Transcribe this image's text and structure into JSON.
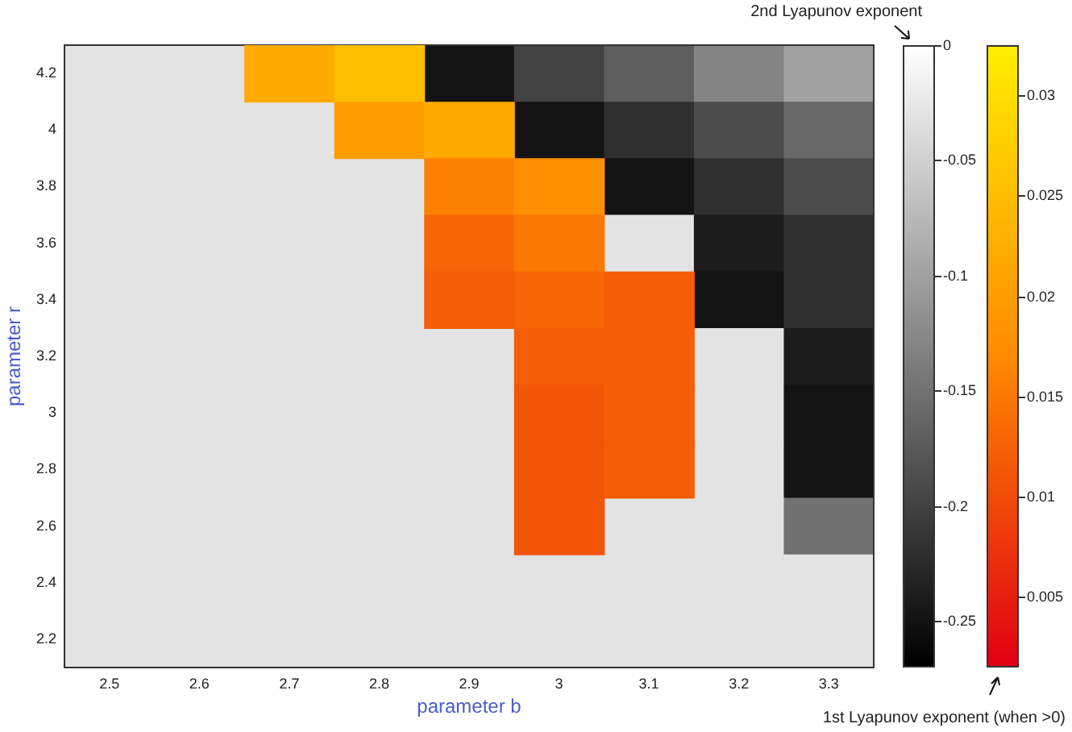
{
  "chart_data": [
    {
      "type": "heatmap",
      "xlabel": "parameter b",
      "ylabel": "parameter r",
      "clabel": "2nd Lyapunov exponent",
      "categories": [
        "2.5",
        "2.6",
        "2.7",
        "2.8",
        "2.9",
        "3",
        "3.1",
        "3.2",
        "3.3"
      ],
      "y_categories": [
        "4.2",
        "4",
        "3.8",
        "3.6",
        "3.4",
        "3.2",
        "3",
        "2.8",
        "2.6",
        "2.4",
        "2.2"
      ],
      "clim": [
        -0.27,
        0
      ],
      "cticks": [
        0,
        -0.05,
        -0.1,
        -0.15,
        -0.2,
        -0.25
      ],
      "legend": false,
      "grid": false,
      "cells": [
        [
          -0.03,
          -0.03,
          null,
          null,
          -0.25,
          -0.2,
          -0.17,
          -0.13,
          -0.1
        ],
        [
          -0.03,
          -0.03,
          -0.03,
          null,
          null,
          -0.25,
          -0.22,
          -0.19,
          -0.16
        ],
        [
          -0.03,
          -0.03,
          -0.03,
          -0.03,
          null,
          null,
          -0.25,
          -0.22,
          -0.19
        ],
        [
          -0.03,
          -0.03,
          -0.03,
          -0.03,
          null,
          null,
          -0.03,
          -0.24,
          -0.22
        ],
        [
          -0.03,
          -0.03,
          -0.03,
          -0.03,
          null,
          null,
          null,
          -0.25,
          -0.22
        ],
        [
          -0.03,
          -0.03,
          -0.03,
          -0.03,
          -0.03,
          null,
          null,
          -0.03,
          -0.24
        ],
        [
          -0.03,
          -0.03,
          -0.03,
          -0.03,
          -0.03,
          null,
          null,
          -0.03,
          -0.25
        ],
        [
          -0.03,
          -0.03,
          -0.03,
          -0.03,
          -0.03,
          null,
          null,
          -0.03,
          -0.25
        ],
        [
          -0.03,
          -0.03,
          -0.03,
          -0.03,
          -0.03,
          null,
          -0.03,
          -0.03,
          -0.15
        ],
        [
          -0.03,
          -0.03,
          -0.03,
          -0.03,
          -0.03,
          -0.03,
          -0.03,
          -0.03,
          -0.03
        ],
        [
          -0.03,
          -0.03,
          -0.03,
          -0.03,
          -0.03,
          -0.03,
          -0.03,
          -0.03,
          -0.03
        ]
      ]
    },
    {
      "type": "heatmap",
      "clabel": "1st Lyapunov exponent (when >0)",
      "tick_labels": false,
      "categories": [
        "2.5",
        "2.6",
        "2.7",
        "2.8",
        "2.9",
        "3",
        "3.1",
        "3.2",
        "3.3"
      ],
      "y_categories": [
        "4.2",
        "4",
        "3.8",
        "3.6",
        "3.4",
        "3.2",
        "3",
        "2.8",
        "2.6",
        "2.4",
        "2.2"
      ],
      "clim": [
        0.0015,
        0.0325
      ],
      "cticks": [
        0.005,
        0.01,
        0.015,
        0.02,
        0.025,
        0.03
      ],
      "legend": false,
      "grid": false,
      "cells": [
        [
          null,
          null,
          0.022,
          0.025,
          null,
          null,
          null,
          null,
          null
        ],
        [
          null,
          null,
          null,
          0.02,
          0.022,
          null,
          null,
          null,
          null
        ],
        [
          null,
          null,
          null,
          null,
          0.016,
          0.018,
          null,
          null,
          null
        ],
        [
          null,
          null,
          null,
          null,
          0.013,
          0.015,
          null,
          null,
          null
        ],
        [
          null,
          null,
          null,
          null,
          0.012,
          0.013,
          0.012,
          null,
          null
        ],
        [
          null,
          null,
          null,
          null,
          null,
          0.012,
          0.012,
          null,
          null
        ],
        [
          null,
          null,
          null,
          null,
          null,
          0.011,
          0.012,
          null,
          null
        ],
        [
          null,
          null,
          null,
          null,
          null,
          0.011,
          0.012,
          null,
          null
        ],
        [
          null,
          null,
          null,
          null,
          null,
          0.011,
          null,
          null,
          null
        ],
        [
          null,
          null,
          null,
          null,
          null,
          null,
          null,
          null,
          null
        ],
        [
          null,
          null,
          null,
          null,
          null,
          null,
          null,
          null,
          null
        ]
      ]
    }
  ]
}
